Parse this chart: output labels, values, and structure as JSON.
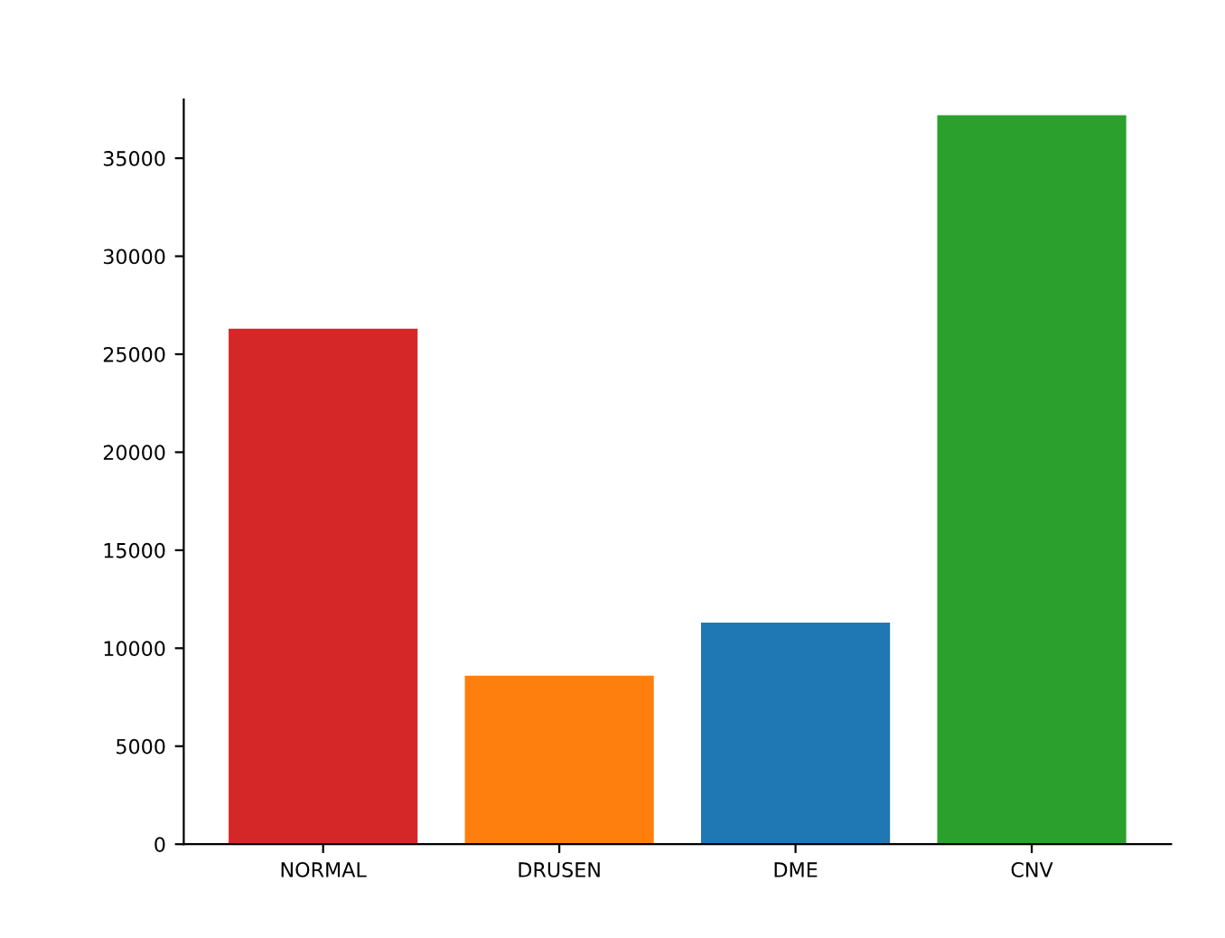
{
  "chart_data": {
    "type": "bar",
    "categories": [
      "NORMAL",
      "DRUSEN",
      "DME",
      "CNV"
    ],
    "values": [
      26300,
      8600,
      11300,
      37200
    ],
    "colors": [
      "#d62728",
      "#ff7f0e",
      "#1f77b4",
      "#2ca02c"
    ],
    "ylim": [
      0,
      38000
    ],
    "yticks": [
      0,
      5000,
      10000,
      15000,
      20000,
      25000,
      30000,
      35000
    ],
    "grid": false
  }
}
